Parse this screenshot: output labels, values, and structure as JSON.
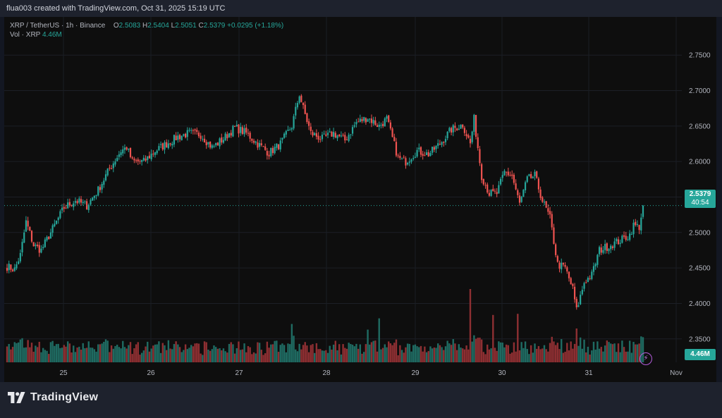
{
  "header": {
    "attribution": "flua003 created with TradingView.com, Oct 31, 2025 15:19 UTC"
  },
  "legend": {
    "symbol": "XRP / TetherUS · 1h · Binance",
    "open_label": "O",
    "open": "2.5083",
    "high_label": "H",
    "high": "2.5404",
    "low_label": "L",
    "low": "2.5051",
    "close_label": "C",
    "close": "2.5379",
    "change": "+0.0295 (+1.18%)",
    "volume_label": "Vol · XRP",
    "volume": "4.46M"
  },
  "tags": {
    "price": "2.5379",
    "countdown": "40:54",
    "volume": "4.46M"
  },
  "brand": {
    "name": "TradingView"
  },
  "colors": {
    "up": "#26a69a",
    "down": "#ef5350",
    "vol_up": "#1f6b62",
    "vol_down": "#8e2f32",
    "background": "#0e0e0e"
  },
  "chart_data": {
    "type": "candlestick",
    "symbol": "XRP / TetherUS",
    "interval": "1h",
    "exchange": "Binance",
    "y_ticks": [
      "2.3500",
      "2.4000",
      "2.4500",
      "2.5000",
      "2.5500",
      "2.6000",
      "2.6500",
      "2.7000",
      "2.7500"
    ],
    "y_range": [
      2.315,
      2.78
    ],
    "x_ticks": [
      "25",
      "26",
      "27",
      "28",
      "29",
      "30",
      "31",
      "Nov"
    ],
    "current_price": 2.5379,
    "anchors": [
      [
        0,
        2.452
      ],
      [
        4,
        2.448
      ],
      [
        7,
        2.468
      ],
      [
        10,
        2.515
      ],
      [
        14,
        2.482
      ],
      [
        18,
        2.475
      ],
      [
        24,
        2.505
      ],
      [
        30,
        2.535
      ],
      [
        36,
        2.545
      ],
      [
        42,
        2.538
      ],
      [
        48,
        2.56
      ],
      [
        54,
        2.59
      ],
      [
        60,
        2.615
      ],
      [
        63,
        2.62
      ],
      [
        66,
        2.6
      ],
      [
        72,
        2.6
      ],
      [
        78,
        2.615
      ],
      [
        84,
        2.625
      ],
      [
        90,
        2.635
      ],
      [
        96,
        2.64
      ],
      [
        102,
        2.638
      ],
      [
        108,
        2.62
      ],
      [
        114,
        2.632
      ],
      [
        120,
        2.648
      ],
      [
        126,
        2.64
      ],
      [
        132,
        2.625
      ],
      [
        138,
        2.612
      ],
      [
        144,
        2.625
      ],
      [
        150,
        2.65
      ],
      [
        154,
        2.695
      ],
      [
        156,
        2.675
      ],
      [
        160,
        2.64
      ],
      [
        166,
        2.632
      ],
      [
        172,
        2.64
      ],
      [
        178,
        2.63
      ],
      [
        184,
        2.655
      ],
      [
        190,
        2.662
      ],
      [
        196,
        2.65
      ],
      [
        200,
        2.66
      ],
      [
        206,
        2.605
      ],
      [
        210,
        2.6
      ],
      [
        216,
        2.615
      ],
      [
        222,
        2.61
      ],
      [
        228,
        2.625
      ],
      [
        234,
        2.645
      ],
      [
        240,
        2.652
      ],
      [
        244,
        2.625
      ],
      [
        246,
        2.66
      ],
      [
        250,
        2.58
      ],
      [
        254,
        2.555
      ],
      [
        258,
        2.555
      ],
      [
        262,
        2.585
      ],
      [
        266,
        2.58
      ],
      [
        270,
        2.54
      ],
      [
        274,
        2.575
      ],
      [
        278,
        2.58
      ],
      [
        282,
        2.545
      ],
      [
        286,
        2.52
      ],
      [
        290,
        2.455
      ],
      [
        294,
        2.45
      ],
      [
        298,
        2.42
      ],
      [
        300,
        2.39
      ],
      [
        304,
        2.43
      ],
      [
        308,
        2.44
      ],
      [
        312,
        2.475
      ],
      [
        316,
        2.48
      ],
      [
        320,
        2.485
      ],
      [
        324,
        2.49
      ],
      [
        328,
        2.497
      ],
      [
        330,
        2.51
      ],
      [
        333,
        2.508
      ],
      [
        335,
        2.538
      ]
    ],
    "volume_range_millions": [
      0,
      15
    ],
    "volume_spikes_millions": [
      [
        150,
        6.8
      ],
      [
        190,
        5.8
      ],
      [
        196,
        7.8
      ],
      [
        244,
        13.0
      ],
      [
        256,
        8.4
      ],
      [
        269,
        8.6
      ],
      [
        300,
        6.0
      ]
    ],
    "last_volume_millions": 4.46,
    "candle_count": 336
  }
}
